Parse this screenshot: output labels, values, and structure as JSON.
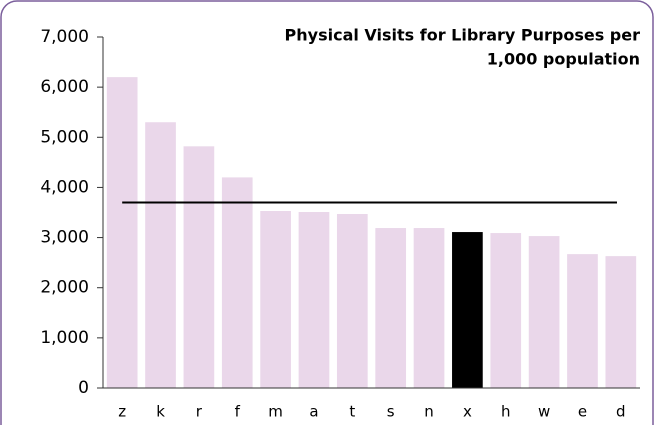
{
  "chart_data": {
    "type": "bar",
    "title": [
      "Physical Visits for Library Purposes per",
      "1,000 population"
    ],
    "categories": [
      "z",
      "k",
      "r",
      "f",
      "m",
      "a",
      "t",
      "s",
      "n",
      "x",
      "h",
      "w",
      "e",
      "d"
    ],
    "values": [
      6200,
      5300,
      4820,
      4200,
      3530,
      3510,
      3470,
      3190,
      3190,
      3110,
      3090,
      3030,
      2670,
      2630
    ],
    "colors": [
      "#ead7ea",
      "#ead7ea",
      "#ead7ea",
      "#ead7ea",
      "#ead7ea",
      "#ead7ea",
      "#ead7ea",
      "#ead7ea",
      "#ead7ea",
      "#000000",
      "#ead7ea",
      "#ead7ea",
      "#ead7ea",
      "#ead7ea"
    ],
    "reference_line": 3700,
    "ylim": [
      0,
      7000
    ],
    "yticks": [
      0,
      {
        "value": 1000,
        "label": "1,000"
      },
      {
        "value": 2000,
        "label": "2,000"
      },
      {
        "value": 3000,
        "label": "3,000"
      },
      {
        "value": 4000,
        "label": "4,000"
      },
      {
        "value": 5000,
        "label": "5,000"
      },
      {
        "value": 6000,
        "label": "6,000"
      },
      {
        "value": 7000,
        "label": "7,000"
      }
    ]
  }
}
